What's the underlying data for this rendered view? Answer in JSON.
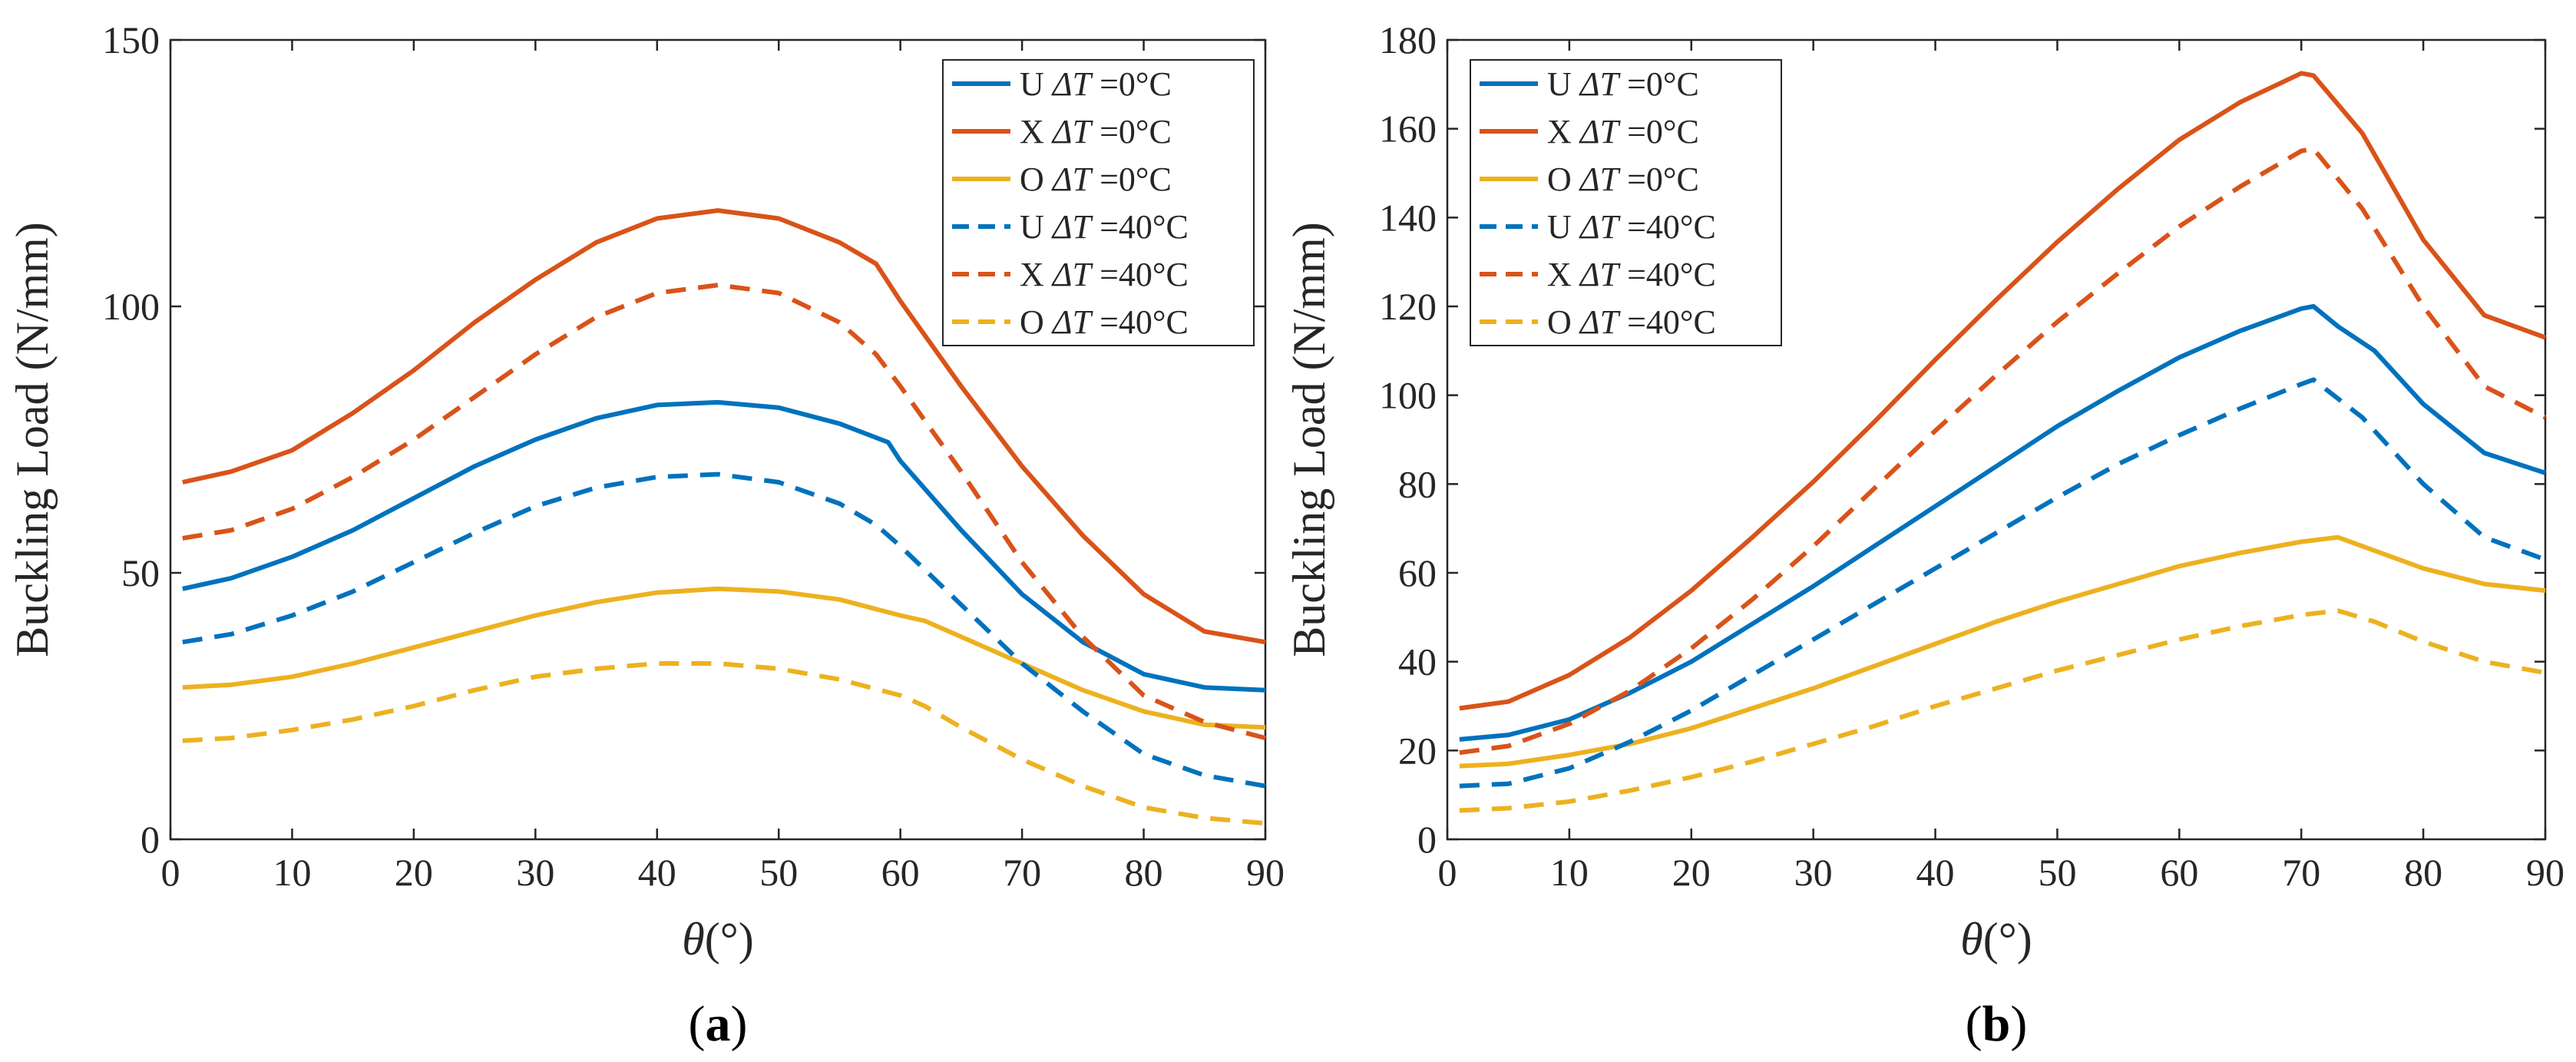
{
  "chart_data": [
    {
      "type": "line",
      "panel_label": "(a)",
      "panel_letter": "a",
      "xlabel": "θ(°)",
      "ylabel": "Buckling Load (N/mm)",
      "xlim": [
        0,
        90
      ],
      "ylim": [
        0,
        150
      ],
      "xticks": [
        0,
        10,
        20,
        30,
        40,
        50,
        60,
        70,
        80,
        90
      ],
      "yticks": [
        0,
        50,
        100,
        150
      ],
      "grid": false,
      "legend_position": "top-right",
      "series": [
        {
          "name": "U ΔT =0°C",
          "prefix": "U ",
          "dt": "ΔT",
          "suffix": " =0°C",
          "color": "#0072BD",
          "dash": "solid",
          "x": [
            1,
            5,
            10,
            15,
            20,
            25,
            30,
            35,
            40,
            45,
            50,
            55,
            59,
            60,
            65,
            70,
            75,
            80,
            85,
            90
          ],
          "y": [
            47,
            49,
            53,
            58,
            64,
            70,
            75,
            79,
            81.5,
            82,
            81,
            78,
            74.5,
            71,
            58,
            46,
            37,
            31,
            28.5,
            28
          ]
        },
        {
          "name": "X ΔT =0°C",
          "prefix": "X ",
          "dt": "ΔT",
          "suffix": " =0°C",
          "color": "#D95319",
          "dash": "solid",
          "x": [
            1,
            5,
            10,
            15,
            20,
            25,
            30,
            35,
            40,
            45,
            50,
            55,
            58,
            60,
            65,
            70,
            75,
            80,
            85,
            90
          ],
          "y": [
            67,
            69,
            73,
            80,
            88,
            97,
            105,
            112,
            116.5,
            118,
            116.5,
            112,
            108,
            101,
            85,
            70,
            57,
            46,
            39,
            37
          ]
        },
        {
          "name": "O ΔT =0°C",
          "prefix": "O ",
          "dt": "ΔT",
          "suffix": " =0°C",
          "color": "#EDB120",
          "dash": "solid",
          "x": [
            1,
            5,
            10,
            15,
            20,
            25,
            30,
            35,
            40,
            45,
            50,
            55,
            60,
            62,
            65,
            70,
            75,
            80,
            85,
            90
          ],
          "y": [
            28.5,
            29,
            30.5,
            33,
            36,
            39,
            42,
            44.5,
            46.3,
            47,
            46.5,
            45,
            42,
            41,
            38,
            33,
            28,
            24,
            21.5,
            21
          ]
        },
        {
          "name": "U ΔT =40°C",
          "prefix": "U ",
          "dt": "ΔT",
          "suffix": " =40°C",
          "color": "#0072BD",
          "dash": "dashed",
          "x": [
            1,
            5,
            10,
            15,
            20,
            25,
            30,
            35,
            40,
            45,
            50,
            55,
            58,
            60,
            65,
            70,
            75,
            80,
            85,
            90
          ],
          "y": [
            37,
            38.5,
            42,
            46.5,
            52,
            57.5,
            62.5,
            66,
            68,
            68.5,
            67,
            63,
            59,
            55,
            44,
            33,
            24,
            16,
            12,
            10
          ]
        },
        {
          "name": "X ΔT =40°C",
          "prefix": "X ",
          "dt": "ΔT",
          "suffix": " =40°C",
          "color": "#D95319",
          "dash": "dashed",
          "x": [
            1,
            5,
            10,
            15,
            20,
            25,
            30,
            35,
            40,
            45,
            50,
            55,
            58,
            60,
            65,
            70,
            75,
            80,
            85,
            90
          ],
          "y": [
            56.5,
            58,
            62,
            68,
            75,
            83,
            91,
            98,
            102.5,
            104,
            102.5,
            97,
            91,
            85,
            69,
            52,
            38,
            27,
            22,
            19
          ]
        },
        {
          "name": "O ΔT =40°C",
          "prefix": "O ",
          "dt": "ΔT",
          "suffix": " =40°C",
          "color": "#EDB120",
          "dash": "dashed",
          "x": [
            1,
            5,
            10,
            15,
            20,
            25,
            30,
            35,
            40,
            45,
            50,
            55,
            60,
            62,
            65,
            70,
            75,
            80,
            85,
            90
          ],
          "y": [
            18.5,
            19,
            20.5,
            22.5,
            25,
            28,
            30.5,
            32,
            33,
            33,
            32,
            30,
            27,
            25,
            21,
            15,
            10,
            6,
            4,
            3
          ]
        }
      ]
    },
    {
      "type": "line",
      "panel_label": "(b)",
      "panel_letter": "b",
      "xlabel": "θ(°)",
      "ylabel": "Buckling Load (N/mm)",
      "xlim": [
        0,
        90
      ],
      "ylim": [
        0,
        180
      ],
      "xticks": [
        0,
        10,
        20,
        30,
        40,
        50,
        60,
        70,
        80,
        90
      ],
      "yticks": [
        0,
        20,
        40,
        60,
        80,
        100,
        120,
        140,
        160,
        180
      ],
      "grid": false,
      "legend_position": "top-left",
      "series": [
        {
          "name": "U ΔT =0°C",
          "prefix": "U ",
          "dt": "ΔT",
          "suffix": " =0°C",
          "color": "#0072BD",
          "dash": "solid",
          "x": [
            1,
            5,
            10,
            15,
            20,
            25,
            30,
            35,
            40,
            45,
            50,
            55,
            60,
            65,
            70,
            71,
            73,
            76,
            80,
            85,
            90
          ],
          "y": [
            22.5,
            23.5,
            27,
            33,
            40,
            48.5,
            57,
            66,
            75,
            84,
            93,
            101,
            108.5,
            114.5,
            119.5,
            120,
            115.5,
            110,
            98,
            87,
            82.5
          ]
        },
        {
          "name": "X ΔT =0°C",
          "prefix": "X ",
          "dt": "ΔT",
          "suffix": " =0°C",
          "color": "#D95319",
          "dash": "solid",
          "x": [
            1,
            5,
            10,
            15,
            20,
            25,
            30,
            35,
            40,
            45,
            50,
            55,
            60,
            65,
            70,
            71,
            75,
            80,
            85,
            90
          ],
          "y": [
            29.5,
            31,
            37,
            45.5,
            56,
            68,
            80.5,
            94,
            108,
            121.5,
            134.5,
            146.5,
            157.5,
            166,
            172.5,
            172,
            159,
            135,
            118,
            113
          ]
        },
        {
          "name": "O ΔT =0°C",
          "prefix": "O ",
          "dt": "ΔT",
          "suffix": " =0°C",
          "color": "#EDB120",
          "dash": "solid",
          "x": [
            1,
            5,
            10,
            15,
            20,
            25,
            30,
            35,
            40,
            45,
            50,
            55,
            60,
            65,
            70,
            73,
            76,
            80,
            85,
            90
          ],
          "y": [
            16.5,
            17,
            19,
            21.5,
            25,
            29.5,
            34,
            39,
            44,
            49,
            53.5,
            57.5,
            61.5,
            64.5,
            67,
            68,
            65,
            61,
            57.5,
            56
          ]
        },
        {
          "name": "U ΔT =40°C",
          "prefix": "U ",
          "dt": "ΔT",
          "suffix": " =40°C",
          "color": "#0072BD",
          "dash": "dashed",
          "x": [
            1,
            5,
            10,
            15,
            20,
            25,
            30,
            35,
            40,
            45,
            50,
            55,
            60,
            65,
            70,
            71,
            75,
            80,
            85,
            90
          ],
          "y": [
            12,
            12.5,
            16,
            22,
            29,
            37,
            45,
            53,
            61,
            69,
            77,
            84.5,
            91,
            97,
            102.5,
            103.5,
            95,
            80,
            68,
            63
          ]
        },
        {
          "name": "X ΔT =40°C",
          "prefix": "X ",
          "dt": "ΔT",
          "suffix": " =40°C",
          "color": "#D95319",
          "dash": "dashed",
          "x": [
            1,
            5,
            10,
            15,
            20,
            25,
            30,
            35,
            40,
            45,
            50,
            55,
            60,
            65,
            70,
            71,
            75,
            80,
            85,
            90
          ],
          "y": [
            19.5,
            21,
            26,
            33.5,
            43,
            54,
            66,
            79,
            92,
            104.5,
            116.5,
            127.5,
            138,
            147,
            155,
            155.5,
            142,
            120,
            102,
            95
          ]
        },
        {
          "name": "O ΔT =40°C",
          "prefix": "O ",
          "dt": "ΔT",
          "suffix": " =40°C",
          "color": "#EDB120",
          "dash": "dashed",
          "x": [
            1,
            5,
            10,
            15,
            20,
            25,
            30,
            35,
            40,
            45,
            50,
            55,
            60,
            65,
            70,
            73,
            76,
            80,
            85,
            90
          ],
          "y": [
            6.5,
            7,
            8.5,
            11,
            14,
            17.5,
            21.5,
            25.5,
            30,
            34,
            38,
            41.5,
            45,
            48,
            50.5,
            51.5,
            49,
            44.5,
            40,
            37.5
          ]
        }
      ]
    }
  ]
}
